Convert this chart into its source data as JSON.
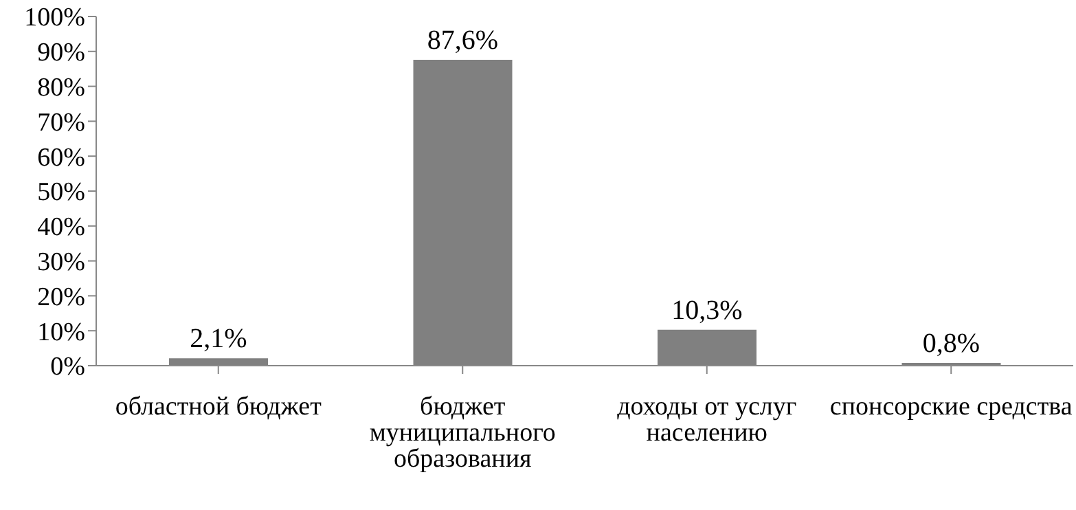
{
  "chart_data": {
    "type": "bar",
    "categories": [
      "областной бюджет",
      "бюджет муниципального образования",
      "доходы от услуг населению",
      "спонсорские средства"
    ],
    "values": [
      2.1,
      87.6,
      10.3,
      0.8
    ],
    "value_labels": [
      "2,1%",
      "87,6%",
      "10,3%",
      "0,8%"
    ],
    "color": "#808080",
    "ylim": [
      0,
      100
    ],
    "yticks": [
      {
        "value": 0,
        "label": "0%"
      },
      {
        "value": 10,
        "label": "10%"
      },
      {
        "value": 20,
        "label": "20%"
      },
      {
        "value": 30,
        "label": "30%"
      },
      {
        "value": 40,
        "label": "40%"
      },
      {
        "value": 50,
        "label": "50%"
      },
      {
        "value": 60,
        "label": "60%"
      },
      {
        "value": 70,
        "label": "70%"
      },
      {
        "value": 80,
        "label": "80%"
      },
      {
        "value": 90,
        "label": "90%"
      },
      {
        "value": 100,
        "label": "100%"
      }
    ],
    "grid": false,
    "legend": false
  }
}
